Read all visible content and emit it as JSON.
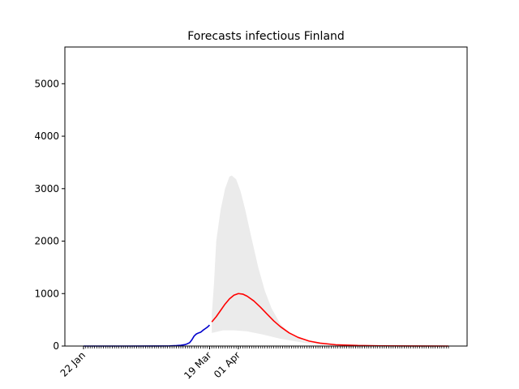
{
  "chart_data": {
    "type": "line",
    "title": "Forecasts infectious Finland",
    "xlabel": "",
    "ylabel": "",
    "x_start": "2020-01-22",
    "x_end": "2020-07-05",
    "ylim": [
      0,
      5700
    ],
    "yticks": [
      0,
      1000,
      2000,
      3000,
      4000,
      5000
    ],
    "xticks": [
      {
        "date": "2020-01-22",
        "label": "22 Jan"
      },
      {
        "date": "2020-03-19",
        "label": "19 Mar"
      },
      {
        "date": "2020-04-01",
        "label": "01 Apr"
      }
    ],
    "grid": false,
    "legend": "none",
    "series": [
      {
        "kind": "observed",
        "color": "#0000cc",
        "points": [
          [
            "2020-01-22",
            0
          ],
          [
            "2020-02-10",
            0
          ],
          [
            "2020-02-25",
            1
          ],
          [
            "2020-03-01",
            3
          ],
          [
            "2020-03-04",
            8
          ],
          [
            "2020-03-06",
            15
          ],
          [
            "2020-03-08",
            28
          ],
          [
            "2020-03-09",
            45
          ],
          [
            "2020-03-10",
            65
          ],
          [
            "2020-03-11",
            120
          ],
          [
            "2020-03-12",
            190
          ],
          [
            "2020-03-13",
            230
          ],
          [
            "2020-03-14",
            250
          ],
          [
            "2020-03-15",
            265
          ],
          [
            "2020-03-16",
            300
          ],
          [
            "2020-03-17",
            330
          ],
          [
            "2020-03-18",
            360
          ],
          [
            "2020-03-19",
            400
          ]
        ]
      },
      {
        "kind": "forecast",
        "color": "#ff0000",
        "points": [
          [
            "2020-03-20",
            460
          ],
          [
            "2020-03-22",
            560
          ],
          [
            "2020-03-24",
            680
          ],
          [
            "2020-03-26",
            800
          ],
          [
            "2020-03-28",
            900
          ],
          [
            "2020-03-30",
            970
          ],
          [
            "2020-04-01",
            1000
          ],
          [
            "2020-04-03",
            990
          ],
          [
            "2020-04-05",
            950
          ],
          [
            "2020-04-08",
            860
          ],
          [
            "2020-04-11",
            740
          ],
          [
            "2020-04-14",
            610
          ],
          [
            "2020-04-17",
            480
          ],
          [
            "2020-04-20",
            370
          ],
          [
            "2020-04-24",
            250
          ],
          [
            "2020-04-28",
            165
          ],
          [
            "2020-05-03",
            95
          ],
          [
            "2020-05-08",
            55
          ],
          [
            "2020-05-15",
            25
          ],
          [
            "2020-05-25",
            10
          ],
          [
            "2020-06-05",
            4
          ],
          [
            "2020-06-20",
            1
          ],
          [
            "2020-07-05",
            0
          ]
        ]
      }
    ],
    "band": {
      "color": "#ebebeb",
      "lower": [
        [
          "2020-03-20",
          250
        ],
        [
          "2020-03-25",
          300
        ],
        [
          "2020-03-30",
          300
        ],
        [
          "2020-04-05",
          280
        ],
        [
          "2020-04-12",
          220
        ],
        [
          "2020-04-20",
          140
        ],
        [
          "2020-05-01",
          60
        ],
        [
          "2020-05-15",
          15
        ],
        [
          "2020-06-01",
          3
        ],
        [
          "2020-07-05",
          0
        ]
      ],
      "upper": [
        [
          "2020-03-20",
          600
        ],
        [
          "2020-03-21",
          1200
        ],
        [
          "2020-03-22",
          2000
        ],
        [
          "2020-03-24",
          2600
        ],
        [
          "2020-03-26",
          3000
        ],
        [
          "2020-03-28",
          3230
        ],
        [
          "2020-03-29",
          3250
        ],
        [
          "2020-03-31",
          3180
        ],
        [
          "2020-04-02",
          2950
        ],
        [
          "2020-04-04",
          2620
        ],
        [
          "2020-04-07",
          2050
        ],
        [
          "2020-04-10",
          1500
        ],
        [
          "2020-04-13",
          1050
        ],
        [
          "2020-04-16",
          720
        ],
        [
          "2020-04-20",
          420
        ],
        [
          "2020-04-25",
          210
        ],
        [
          "2020-05-01",
          90
        ],
        [
          "2020-05-10",
          30
        ],
        [
          "2020-05-20",
          8
        ],
        [
          "2020-06-05",
          2
        ],
        [
          "2020-07-05",
          0
        ]
      ]
    }
  }
}
